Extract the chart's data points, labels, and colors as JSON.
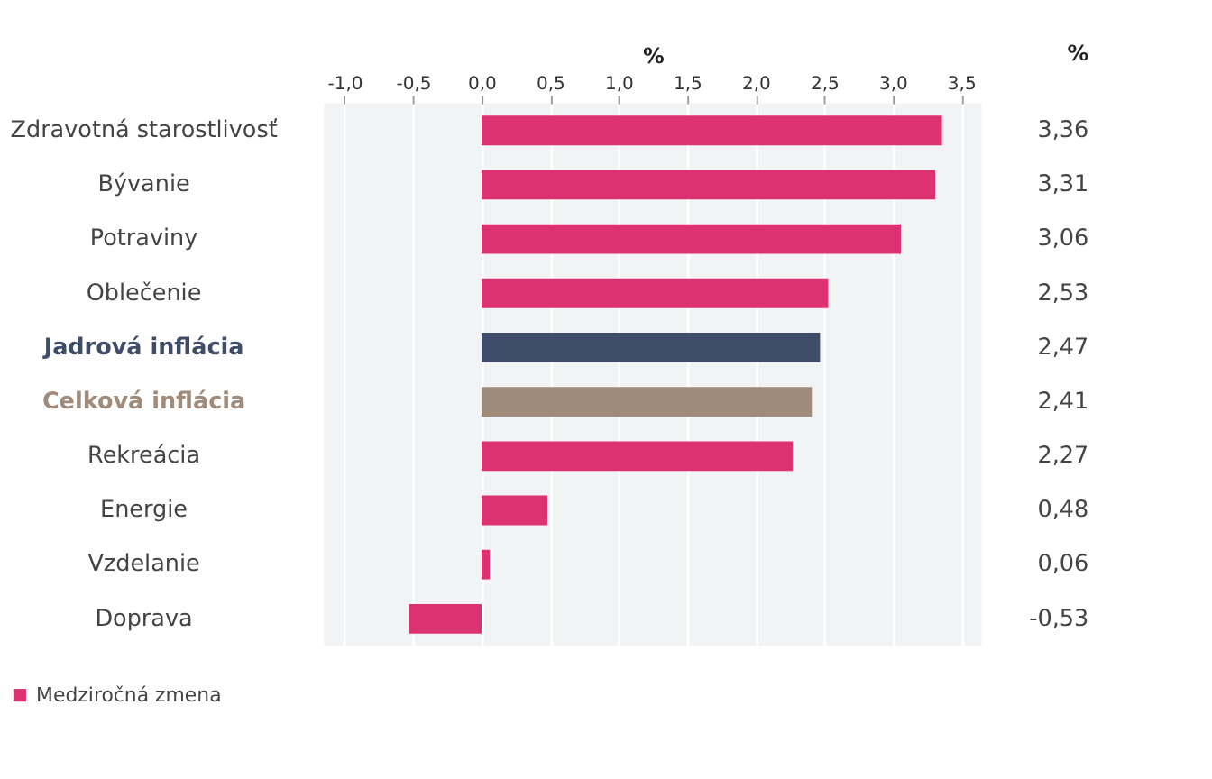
{
  "chart_data": {
    "type": "bar",
    "orientation": "horizontal",
    "xlabel": "%",
    "categories": [
      "Zdravotná starostlivosť",
      "Bývanie",
      "Potraviny",
      "Oblečenie",
      "Jadrová inflácia",
      "Celková inflácia",
      "Rekreácia",
      "Energie",
      "Vzdelanie",
      "Doprava"
    ],
    "series": [
      {
        "name": "Medziročná zmena",
        "color": "#dc3272",
        "values": [
          3.36,
          3.31,
          3.06,
          2.53,
          2.47,
          2.41,
          2.27,
          0.48,
          0.06,
          -0.53
        ],
        "colors": [
          "#dc3272",
          "#dc3272",
          "#dc3272",
          "#dc3272",
          "#3f4d6b",
          "#a08b7a",
          "#dc3272",
          "#dc3272",
          "#dc3272",
          "#dc3272"
        ],
        "value_labels": [
          "3,36",
          "3,31",
          "3,06",
          "2,53",
          "2,47",
          "2,41",
          "2,27",
          "0,48",
          "0,06",
          "-0,53"
        ]
      }
    ],
    "xlim": [
      -1.15,
      3.65
    ],
    "xticks": [
      {
        "value": -1,
        "label": "-1,0"
      },
      {
        "value": -0.5,
        "label": "-0,5"
      },
      {
        "value": 0,
        "label": "0,0"
      },
      {
        "value": 0.5,
        "label": "0,5"
      },
      {
        "value": 1,
        "label": "1,0"
      },
      {
        "value": 1.5,
        "label": "1,5"
      },
      {
        "value": 2,
        "label": "2,0"
      },
      {
        "value": 2.5,
        "label": "2,5"
      },
      {
        "value": 3,
        "label": "3,0"
      },
      {
        "value": 3.5,
        "label": "3,5"
      }
    ],
    "annotations": [
      "%"
    ],
    "grid": "x",
    "legend": "bottom left"
  }
}
